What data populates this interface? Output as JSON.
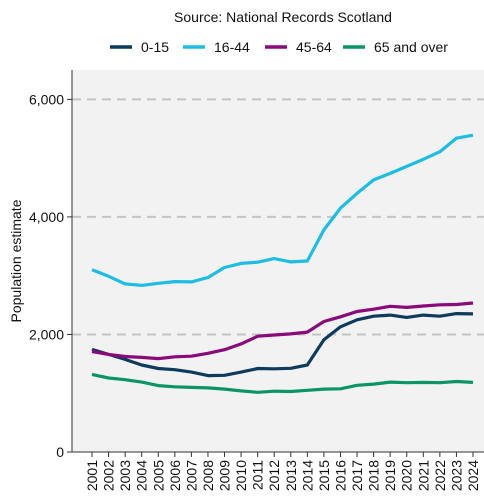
{
  "chart_data": {
    "type": "line",
    "subtitle": "Source: National Records Scotland",
    "ylabel": "Population estimate",
    "xlabel": "",
    "ylim": [
      0,
      6500
    ],
    "yticks": [
      0,
      2000,
      4000,
      6000
    ],
    "ytick_labels": [
      "0",
      "2,000",
      "4,000",
      "6,000"
    ],
    "grid": "horizontal dashed major lines",
    "legend_position": "top",
    "x": [
      "2001",
      "2002",
      "2003",
      "2004",
      "2005",
      "2006",
      "2007",
      "2008",
      "2009",
      "2010",
      "2011",
      "2012",
      "2013",
      "2014",
      "2015",
      "2016",
      "2017",
      "2018",
      "2019",
      "2020",
      "2021",
      "2022",
      "2023",
      "2024"
    ],
    "series": [
      {
        "name": "0-15",
        "color": "#0e3a5c",
        "values": [
          1745,
          1660,
          1575,
          1480,
          1420,
          1400,
          1360,
          1300,
          1305,
          1360,
          1420,
          1415,
          1425,
          1480,
          1910,
          2130,
          2250,
          2310,
          2330,
          2290,
          2330,
          2310,
          2355,
          2350
        ]
      },
      {
        "name": "16-44",
        "color": "#1ebde3",
        "values": [
          3100,
          2990,
          2860,
          2835,
          2870,
          2900,
          2895,
          2970,
          3140,
          3210,
          3230,
          3290,
          3235,
          3250,
          3780,
          4150,
          4400,
          4630,
          4740,
          4860,
          4980,
          5110,
          5340,
          5390
        ]
      },
      {
        "name": "45-64",
        "color": "#8b0a7a",
        "values": [
          1710,
          1660,
          1625,
          1610,
          1590,
          1620,
          1630,
          1680,
          1740,
          1840,
          1970,
          1990,
          2010,
          2040,
          2220,
          2300,
          2390,
          2430,
          2480,
          2460,
          2485,
          2505,
          2510,
          2535
        ]
      },
      {
        "name": "65 and over",
        "color": "#0b9467",
        "values": [
          1320,
          1260,
          1230,
          1190,
          1130,
          1110,
          1100,
          1090,
          1070,
          1040,
          1015,
          1035,
          1030,
          1050,
          1070,
          1075,
          1135,
          1155,
          1190,
          1180,
          1185,
          1180,
          1200,
          1185
        ]
      }
    ]
  }
}
